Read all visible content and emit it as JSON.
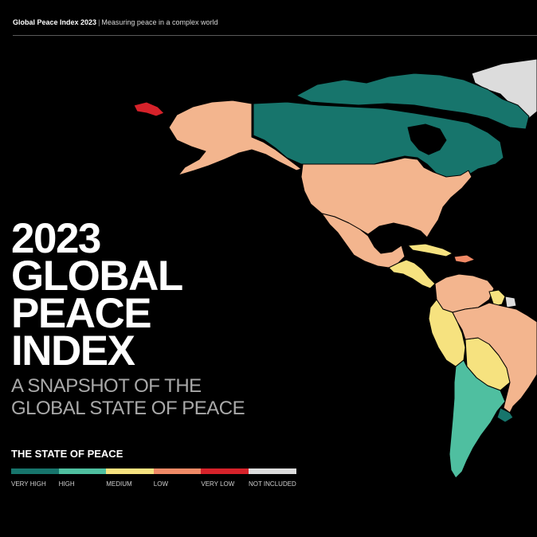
{
  "header": {
    "brand": "Global Peace Index 2023",
    "separator": "|",
    "tagline": "Measuring peace in a complex world"
  },
  "title": {
    "lines": [
      "2023",
      "GLOBAL",
      "PEACE",
      "INDEX"
    ],
    "subtitle_lines": [
      "A SNAPSHOT OF THE",
      "GLOBAL STATE OF PEACE"
    ]
  },
  "legend": {
    "title": "THE STATE OF PEACE",
    "items": [
      {
        "label": "VERY HIGH",
        "color": "#17756c"
      },
      {
        "label": "HIGH",
        "color": "#4fbfa0"
      },
      {
        "label": "MEDIUM",
        "color": "#f6e27f"
      },
      {
        "label": "LOW",
        "color": "#f08a66"
      },
      {
        "label": "VERY LOW",
        "color": "#d6222a"
      },
      {
        "label": "NOT INCLUDED",
        "color": "#dcdcdc"
      }
    ]
  },
  "map": {
    "regions": [
      {
        "name": "greenland",
        "level": "NOT INCLUDED"
      },
      {
        "name": "canada",
        "level": "VERY HIGH"
      },
      {
        "name": "alaska",
        "level": "LOW"
      },
      {
        "name": "russia-far-east",
        "level": "VERY LOW"
      },
      {
        "name": "united-states",
        "level": "LOW"
      },
      {
        "name": "mexico",
        "level": "LOW"
      },
      {
        "name": "central-america",
        "level": "MEDIUM"
      },
      {
        "name": "caribbean",
        "level": "MEDIUM"
      },
      {
        "name": "venezuela-colombia",
        "level": "LOW"
      },
      {
        "name": "peru-ecuador",
        "level": "MEDIUM"
      },
      {
        "name": "bolivia",
        "level": "MEDIUM"
      },
      {
        "name": "brazil",
        "level": "LOW"
      },
      {
        "name": "argentina-chile",
        "level": "HIGH"
      },
      {
        "name": "uruguay",
        "level": "VERY HIGH"
      },
      {
        "name": "french-guiana",
        "level": "NOT INCLUDED"
      }
    ]
  }
}
